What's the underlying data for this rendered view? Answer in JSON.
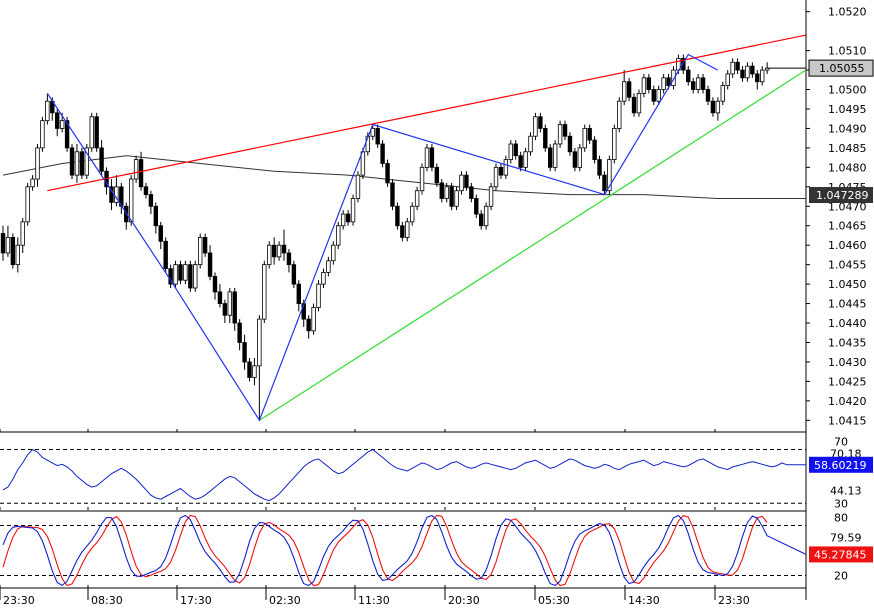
{
  "chart_data": [
    {
      "type": "candlestick",
      "ylim": [
        1.0412,
        1.0523
      ],
      "y_ticks": [
        "1.0520",
        "1.0510",
        "1.0505",
        "1.0500",
        "1.0495",
        "1.0490",
        "1.0485",
        "1.0480",
        "1.0475",
        "1.0470",
        "1.0465",
        "1.0460",
        "1.0455",
        "1.0450",
        "1.0445",
        "1.0440",
        "1.0435",
        "1.0430",
        "1.0425",
        "1.0420",
        "1.0415"
      ],
      "x_ticks": [
        "23:30",
        "08:30",
        "17:30",
        "02:30",
        "11:30",
        "20:30",
        "05:30",
        "14:30",
        "23:30"
      ],
      "last_price_label": "1.05055",
      "moving_average_label": "1.047289",
      "moving_average_anchors": [
        [
          0,
          1.0478
        ],
        [
          12,
          1.0481
        ],
        [
          25,
          1.0483
        ],
        [
          40,
          1.0481
        ],
        [
          55,
          1.0479
        ],
        [
          70,
          1.0478
        ],
        [
          85,
          1.0476
        ],
        [
          100,
          1.0474
        ],
        [
          115,
          1.0473
        ],
        [
          130,
          1.0473
        ],
        [
          145,
          1.0472
        ],
        [
          155,
          1.0472
        ]
      ],
      "zigzag": [
        [
          9,
          1.0499
        ],
        [
          34,
          1.0451
        ],
        [
          52,
          1.0415
        ],
        [
          75,
          1.0491
        ],
        [
          122,
          1.0473
        ],
        [
          139,
          1.0509
        ],
        [
          145,
          1.0505
        ]
      ],
      "upper_trendline": [
        [
          9,
          1.0474
        ],
        [
          162,
          1.0514
        ]
      ],
      "lower_trendline": [
        [
          52,
          1.0415
        ],
        [
          162,
          1.0505
        ]
      ],
      "candles": [
        [
          1.0463,
          1.0458,
          1.0465,
          1.0456
        ],
        [
          1.0458,
          1.0462,
          1.0465,
          1.0457
        ],
        [
          1.0462,
          1.0455,
          1.0463,
          1.0454
        ],
        [
          1.0455,
          1.046,
          1.0462,
          1.0453
        ],
        [
          1.046,
          1.0466,
          1.0467,
          1.0458
        ],
        [
          1.0466,
          1.0475,
          1.0476,
          1.0465
        ],
        [
          1.0475,
          1.0477,
          1.0478,
          1.0474
        ],
        [
          1.0477,
          1.0485,
          1.0486,
          1.0475
        ],
        [
          1.0485,
          1.0492,
          1.0493,
          1.0484
        ],
        [
          1.0492,
          1.0497,
          1.0499,
          1.0491
        ],
        [
          1.0497,
          1.0494,
          1.0498,
          1.0492
        ],
        [
          1.0494,
          1.049,
          1.0495,
          1.0488
        ],
        [
          1.049,
          1.0492,
          1.0494,
          1.0489
        ],
        [
          1.0492,
          1.0485,
          1.0493,
          1.0484
        ],
        [
          1.0485,
          1.0478,
          1.0486,
          1.0477
        ],
        [
          1.0478,
          1.0484,
          1.0486,
          1.0476
        ],
        [
          1.0484,
          1.0478,
          1.0485,
          1.0477
        ],
        [
          1.0478,
          1.0485,
          1.0486,
          1.0477
        ],
        [
          1.0485,
          1.0493,
          1.0494,
          1.0484
        ],
        [
          1.0493,
          1.0485,
          1.0494,
          1.0484
        ],
        [
          1.0485,
          1.0479,
          1.0487,
          1.0478
        ],
        [
          1.0479,
          1.0475,
          1.048,
          1.0473
        ],
        [
          1.0475,
          1.0471,
          1.0477,
          1.0469
        ],
        [
          1.0471,
          1.0475,
          1.0478,
          1.047
        ],
        [
          1.0475,
          1.047,
          1.0476,
          1.0468
        ],
        [
          1.047,
          1.0466,
          1.0471,
          1.0464
        ],
        [
          1.0466,
          1.0477,
          1.0478,
          1.0465
        ],
        [
          1.0477,
          1.0482,
          1.0483,
          1.0476
        ],
        [
          1.0482,
          1.0475,
          1.0484,
          1.0474
        ],
        [
          1.0475,
          1.0473,
          1.0476,
          1.0472
        ],
        [
          1.0473,
          1.047,
          1.0474,
          1.0468
        ],
        [
          1.047,
          1.0465,
          1.0471,
          1.0463
        ],
        [
          1.0465,
          1.0461,
          1.0466,
          1.0459
        ],
        [
          1.0461,
          1.0454,
          1.0462,
          1.0453
        ],
        [
          1.0454,
          1.045,
          1.0455,
          1.0449
        ],
        [
          1.045,
          1.0455,
          1.0456,
          1.0449
        ],
        [
          1.0455,
          1.0451,
          1.0456,
          1.045
        ],
        [
          1.0451,
          1.0455,
          1.0456,
          1.045
        ],
        [
          1.0455,
          1.0449,
          1.0456,
          1.0448
        ],
        [
          1.0449,
          1.0455,
          1.0456,
          1.0448
        ],
        [
          1.0455,
          1.0462,
          1.0463,
          1.0454
        ],
        [
          1.0462,
          1.0458,
          1.0463,
          1.0457
        ],
        [
          1.0458,
          1.0452,
          1.046,
          1.0451
        ],
        [
          1.0452,
          1.0448,
          1.0453,
          1.0446
        ],
        [
          1.0448,
          1.0445,
          1.045,
          1.0444
        ],
        [
          1.0445,
          1.0442,
          1.0446,
          1.044
        ],
        [
          1.0442,
          1.0448,
          1.0449,
          1.044
        ],
        [
          1.0448,
          1.044,
          1.0449,
          1.0438
        ],
        [
          1.044,
          1.0435,
          1.0441,
          1.0433
        ],
        [
          1.0435,
          1.043,
          1.0437,
          1.0428
        ],
        [
          1.043,
          1.0426,
          1.0431,
          1.0425
        ],
        [
          1.0426,
          1.0429,
          1.0431,
          1.0424
        ],
        [
          1.0429,
          1.0441,
          1.0442,
          1.0415
        ],
        [
          1.0441,
          1.0455,
          1.0456,
          1.044
        ],
        [
          1.0455,
          1.046,
          1.0461,
          1.0454
        ],
        [
          1.046,
          1.0457,
          1.0462,
          1.0455
        ],
        [
          1.0457,
          1.046,
          1.0461,
          1.0456
        ],
        [
          1.046,
          1.0458,
          1.0464,
          1.0456
        ],
        [
          1.0458,
          1.0455,
          1.0459,
          1.0453
        ],
        [
          1.0455,
          1.045,
          1.0456,
          1.0449
        ],
        [
          1.045,
          1.0445,
          1.0451,
          1.0443
        ],
        [
          1.0445,
          1.0441,
          1.0446,
          1.0439
        ],
        [
          1.0441,
          1.0438,
          1.0442,
          1.0436
        ],
        [
          1.0438,
          1.0444,
          1.0445,
          1.0437
        ],
        [
          1.0444,
          1.045,
          1.0451,
          1.0443
        ],
        [
          1.045,
          1.0453,
          1.0454,
          1.0449
        ],
        [
          1.0453,
          1.0456,
          1.0457,
          1.0452
        ],
        [
          1.0456,
          1.046,
          1.0461,
          1.0455
        ],
        [
          1.046,
          1.0465,
          1.0466,
          1.0459
        ],
        [
          1.0465,
          1.0468,
          1.0469,
          1.0464
        ],
        [
          1.0468,
          1.0466,
          1.0469,
          1.0465
        ],
        [
          1.0466,
          1.0472,
          1.0473,
          1.0465
        ],
        [
          1.0472,
          1.0478,
          1.0479,
          1.0471
        ],
        [
          1.0478,
          1.0484,
          1.0485,
          1.0477
        ],
        [
          1.0484,
          1.0488,
          1.0489,
          1.0483
        ],
        [
          1.0488,
          1.049,
          1.0491,
          1.0487
        ],
        [
          1.049,
          1.0486,
          1.0491,
          1.0485
        ],
        [
          1.0486,
          1.0481,
          1.0487,
          1.048
        ],
        [
          1.0481,
          1.0476,
          1.0482,
          1.0475
        ],
        [
          1.0476,
          1.047,
          1.0477,
          1.0469
        ],
        [
          1.047,
          1.0465,
          1.0471,
          1.0464
        ],
        [
          1.0465,
          1.0462,
          1.0466,
          1.0461
        ],
        [
          1.0462,
          1.0466,
          1.0467,
          1.0461
        ],
        [
          1.0466,
          1.047,
          1.0471,
          1.0465
        ],
        [
          1.047,
          1.0474,
          1.0475,
          1.0469
        ],
        [
          1.0474,
          1.048,
          1.0481,
          1.0473
        ],
        [
          1.048,
          1.0485,
          1.0486,
          1.0479
        ],
        [
          1.0485,
          1.048,
          1.0486,
          1.0479
        ],
        [
          1.048,
          1.0476,
          1.0481,
          1.0475
        ],
        [
          1.0476,
          1.0472,
          1.0477,
          1.0471
        ],
        [
          1.0472,
          1.0475,
          1.0476,
          1.0471
        ],
        [
          1.0475,
          1.047,
          1.0476,
          1.0469
        ],
        [
          1.047,
          1.0474,
          1.0475,
          1.0469
        ],
        [
          1.0474,
          1.0478,
          1.0479,
          1.0473
        ],
        [
          1.0478,
          1.0475,
          1.0479,
          1.0474
        ],
        [
          1.0475,
          1.0472,
          1.0476,
          1.0471
        ],
        [
          1.0472,
          1.0468,
          1.0473,
          1.0467
        ],
        [
          1.0468,
          1.0465,
          1.0469,
          1.0464
        ],
        [
          1.0465,
          1.047,
          1.0471,
          1.0464
        ],
        [
          1.047,
          1.0475,
          1.0476,
          1.0469
        ],
        [
          1.0475,
          1.048,
          1.0481,
          1.0474
        ],
        [
          1.048,
          1.0478,
          1.0481,
          1.0477
        ],
        [
          1.0478,
          1.0482,
          1.0483,
          1.0477
        ],
        [
          1.0482,
          1.0486,
          1.0487,
          1.0481
        ],
        [
          1.0486,
          1.0483,
          1.0487,
          1.0482
        ],
        [
          1.0483,
          1.048,
          1.0484,
          1.0479
        ],
        [
          1.048,
          1.0484,
          1.0485,
          1.0479
        ],
        [
          1.0484,
          1.0488,
          1.0489,
          1.0483
        ],
        [
          1.0488,
          1.0493,
          1.0494,
          1.0487
        ],
        [
          1.0493,
          1.049,
          1.0494,
          1.0489
        ],
        [
          1.049,
          1.0485,
          1.0491,
          1.0484
        ],
        [
          1.0485,
          1.048,
          1.0486,
          1.0479
        ],
        [
          1.048,
          1.0486,
          1.0487,
          1.0479
        ],
        [
          1.0486,
          1.0491,
          1.0492,
          1.0485
        ],
        [
          1.0491,
          1.0488,
          1.0492,
          1.0487
        ],
        [
          1.0488,
          1.0484,
          1.0489,
          1.0483
        ],
        [
          1.0484,
          1.048,
          1.0485,
          1.0479
        ],
        [
          1.048,
          1.0485,
          1.0486,
          1.0479
        ],
        [
          1.0485,
          1.049,
          1.0491,
          1.0484
        ],
        [
          1.049,
          1.0487,
          1.0491,
          1.0486
        ],
        [
          1.0487,
          1.0482,
          1.0488,
          1.0481
        ],
        [
          1.0482,
          1.0478,
          1.0483,
          1.0477
        ],
        [
          1.0478,
          1.0474,
          1.0479,
          1.0473
        ],
        [
          1.0474,
          1.0482,
          1.0483,
          1.0473
        ],
        [
          1.0482,
          1.049,
          1.0491,
          1.0481
        ],
        [
          1.049,
          1.0497,
          1.0498,
          1.0489
        ],
        [
          1.0497,
          1.0502,
          1.0505,
          1.0496
        ],
        [
          1.0502,
          1.0498,
          1.0503,
          1.0497
        ],
        [
          1.0498,
          1.0494,
          1.0499,
          1.0493
        ],
        [
          1.0494,
          1.0499,
          1.05,
          1.0493
        ],
        [
          1.0499,
          1.0503,
          1.0504,
          1.0498
        ],
        [
          1.0503,
          1.05,
          1.0504,
          1.0499
        ],
        [
          1.05,
          1.0497,
          1.0501,
          1.0496
        ],
        [
          1.0497,
          1.05,
          1.0501,
          1.0496
        ],
        [
          1.05,
          1.0503,
          1.0504,
          1.0499
        ],
        [
          1.0503,
          1.0501,
          1.0504,
          1.05
        ],
        [
          1.0501,
          1.0505,
          1.0506,
          1.05
        ],
        [
          1.0505,
          1.0508,
          1.0509,
          1.0504
        ],
        [
          1.0508,
          1.0505,
          1.0509,
          1.0504
        ],
        [
          1.0505,
          1.0502,
          1.0506,
          1.0501
        ],
        [
          1.0502,
          1.05,
          1.0503,
          1.0499
        ],
        [
          1.05,
          1.0503,
          1.0504,
          1.0499
        ],
        [
          1.0503,
          1.05,
          1.0504,
          1.0499
        ],
        [
          1.05,
          1.0497,
          1.0501,
          1.0496
        ],
        [
          1.0497,
          1.0494,
          1.0498,
          1.0493
        ],
        [
          1.0494,
          1.0497,
          1.0498,
          1.0492
        ],
        [
          1.0497,
          1.0501,
          1.0502,
          1.0496
        ],
        [
          1.0501,
          1.0504,
          1.0505,
          1.05
        ],
        [
          1.0504,
          1.0507,
          1.0508,
          1.0503
        ],
        [
          1.0507,
          1.0505,
          1.0508,
          1.0504
        ],
        [
          1.0505,
          1.0503,
          1.0506,
          1.0502
        ],
        [
          1.0503,
          1.0506,
          1.0507,
          1.0502
        ],
        [
          1.0506,
          1.0504,
          1.0507,
          1.0503
        ],
        [
          1.0504,
          1.0502,
          1.0505,
          1.05
        ],
        [
          1.0502,
          1.0505,
          1.0506,
          1.0501
        ],
        [
          1.0505,
          1.05055,
          1.0507,
          1.0504
        ]
      ]
    },
    {
      "type": "line",
      "ylim": [
        25,
        80
      ],
      "levels": [
        70,
        30
      ],
      "level_labels": [
        "70",
        "30"
      ],
      "y_ticks": [
        "70.18",
        "44.13"
      ],
      "current_label": "58.60219",
      "values": [
        40,
        42,
        48,
        55,
        60,
        66,
        70,
        68,
        64,
        62,
        60,
        58,
        59,
        57,
        54,
        50,
        47,
        44,
        42,
        43,
        46,
        49,
        52,
        54,
        56,
        54,
        51,
        48,
        44,
        40,
        36,
        34,
        33,
        35,
        37,
        39,
        41,
        38,
        35,
        33,
        34,
        36,
        39,
        42,
        45,
        48,
        50,
        49,
        46,
        43,
        40,
        37,
        35,
        33,
        32,
        34,
        37,
        41,
        45,
        49,
        53,
        57,
        60,
        62,
        63,
        60,
        57,
        54,
        52,
        53,
        56,
        59,
        62,
        65,
        68,
        70,
        67,
        64,
        61,
        58,
        56,
        55,
        54,
        56,
        58,
        60,
        59,
        57,
        55,
        56,
        58,
        60,
        61,
        59,
        57,
        56,
        57,
        59,
        60,
        59,
        58,
        57,
        56,
        55,
        56,
        58,
        60,
        61,
        62,
        60,
        58,
        56,
        57,
        59,
        61,
        63,
        62,
        60,
        58,
        57,
        56,
        57,
        59,
        58,
        56,
        55,
        57,
        59,
        60,
        61,
        62,
        60,
        58,
        59,
        61,
        60,
        59,
        58,
        57,
        58,
        60,
        62,
        63,
        61,
        59,
        57,
        56,
        55,
        57,
        58,
        59,
        60,
        61,
        60,
        59,
        58,
        57,
        58,
        60,
        58.6
      ]
    },
    {
      "type": "line",
      "ylim": [
        5,
        95
      ],
      "levels": [
        80,
        20
      ],
      "level_labels": [
        "80",
        "20"
      ],
      "y_ticks": [
        "79.59"
      ],
      "current_label": "45.27845"
    }
  ]
}
